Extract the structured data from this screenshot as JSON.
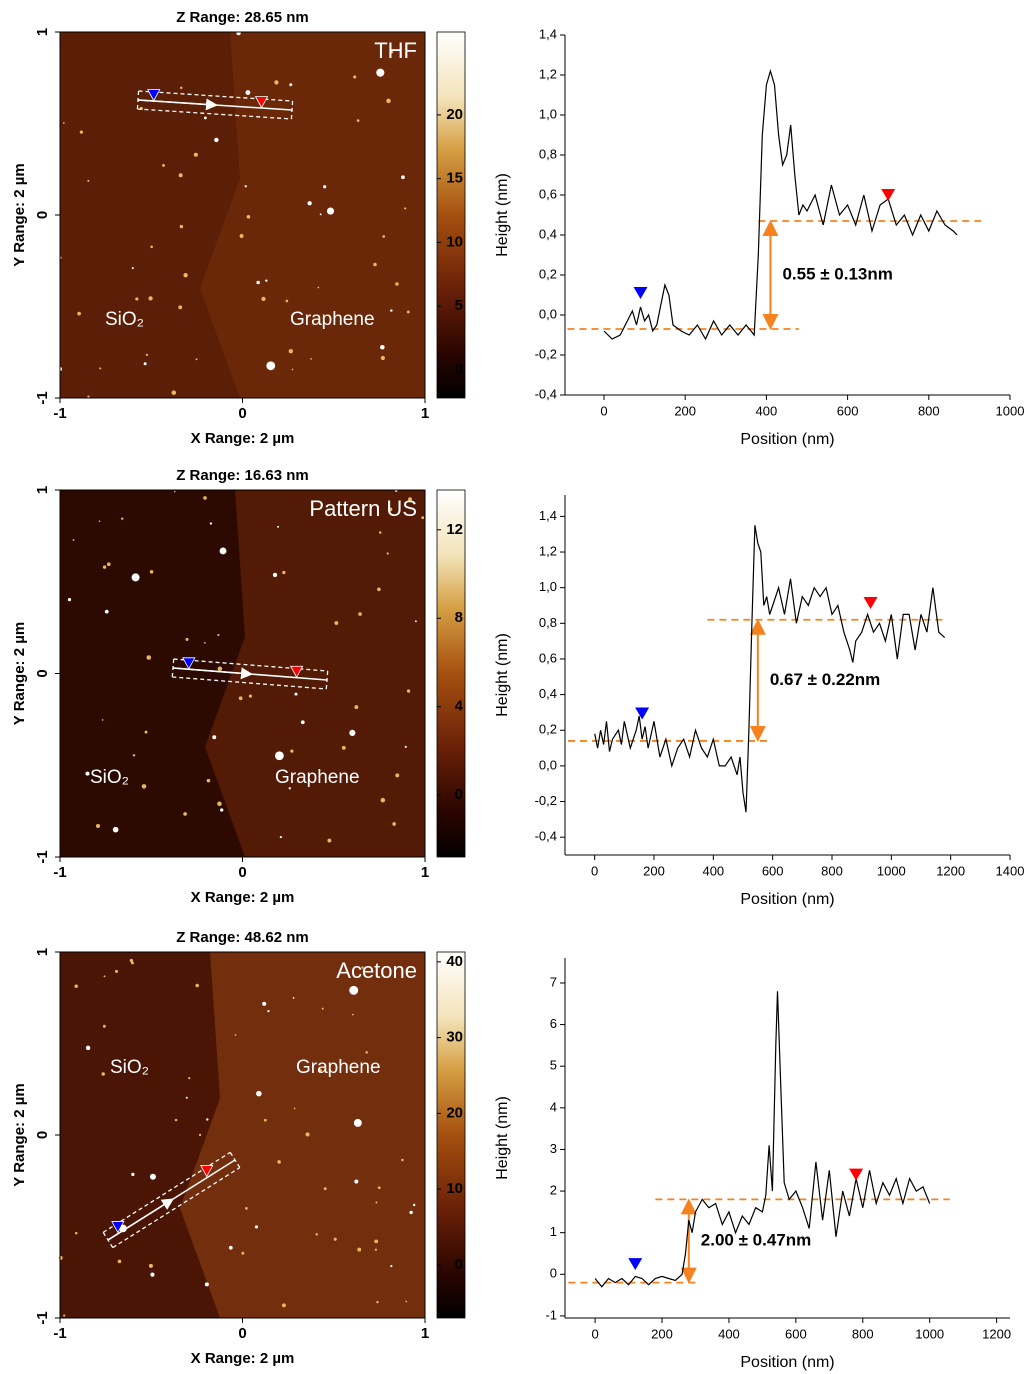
{
  "chart_data": [
    {
      "type": "afm_image",
      "title": "Z Range:  28.65 nm",
      "xlabel": "X Range: 2 µm",
      "ylabel": "Y Range: 2 µm",
      "xlim": [
        -1,
        1
      ],
      "ylim": [
        -1,
        1
      ],
      "xticks": [
        -1,
        0,
        1
      ],
      "yticks": [
        -1,
        0,
        1
      ],
      "colorbar": {
        "lim": [
          -2.2,
          26.5
        ],
        "ticks": [
          0,
          5,
          10,
          15,
          20
        ]
      },
      "label": "THF",
      "regions": [
        "SiO₂",
        "Graphene"
      ]
    },
    {
      "type": "line",
      "xlabel": "Position (nm)",
      "ylabel": "Height (nm)",
      "xlim": [
        -96,
        1000
      ],
      "ylim": [
        -0.4,
        1.4
      ],
      "xticks": [
        0,
        200,
        400,
        600,
        800,
        1000
      ],
      "yticks": [
        {
          "value": -0.4,
          "label": "-0,4"
        },
        {
          "value": -0.2,
          "label": "-0,2"
        },
        {
          "value": 0,
          "label": "0,0"
        },
        {
          "value": 0.2,
          "label": "0,2"
        },
        {
          "value": 0.4,
          "label": "0,4"
        },
        {
          "value": 0.6,
          "label": "0,6"
        },
        {
          "value": 0.8,
          "label": "0,8"
        },
        {
          "value": 1.0,
          "label": "1,0"
        },
        {
          "value": 1.2,
          "label": "1,2"
        },
        {
          "value": 1.4,
          "label": "1,4"
        }
      ],
      "color": "#000000",
      "x": [
        0,
        20,
        40,
        60,
        70,
        80,
        90,
        100,
        110,
        120,
        130,
        140,
        150,
        160,
        170,
        190,
        210,
        230,
        250,
        270,
        290,
        310,
        330,
        350,
        370,
        380,
        390,
        400,
        410,
        420,
        430,
        440,
        450,
        460,
        470,
        480,
        490,
        500,
        520,
        540,
        560,
        580,
        600,
        620,
        640,
        660,
        680,
        700,
        720,
        740,
        760,
        780,
        800,
        820,
        840,
        860,
        870
      ],
      "values": [
        -0.08,
        -0.12,
        -0.1,
        -0.02,
        0.02,
        -0.05,
        0.04,
        -0.03,
        0.0,
        -0.08,
        -0.05,
        0.05,
        0.15,
        0.1,
        -0.05,
        -0.08,
        -0.1,
        -0.05,
        -0.12,
        -0.03,
        -0.1,
        -0.05,
        -0.1,
        -0.05,
        -0.1,
        0.3,
        0.9,
        1.15,
        1.22,
        1.15,
        0.9,
        0.75,
        0.8,
        0.95,
        0.7,
        0.5,
        0.55,
        0.52,
        0.6,
        0.45,
        0.65,
        0.5,
        0.55,
        0.45,
        0.6,
        0.42,
        0.55,
        0.58,
        0.45,
        0.5,
        0.4,
        0.5,
        0.42,
        0.52,
        0.45,
        0.42,
        0.4
      ],
      "markers": [
        {
          "x": 90,
          "y": 0.08,
          "color": "#0000ff"
        },
        {
          "x": 700,
          "y": 0.57,
          "color": "#ff0000"
        }
      ],
      "level_color": "#f5821f",
      "levels": [
        {
          "y": -0.07,
          "x_range": [
            -90,
            480
          ]
        },
        {
          "y": 0.47,
          "x_range": [
            380,
            930
          ]
        }
      ],
      "step": {
        "x": 410,
        "text": "0.55 ± 0.13nm"
      }
    },
    {
      "type": "afm_image",
      "title": "Z Range:  16.63 nm",
      "xlabel": "X Range: 2 µm",
      "ylabel": "Y Range: 2 µm",
      "xlim": [
        -1,
        1
      ],
      "ylim": [
        -1,
        1
      ],
      "xticks": [
        -1,
        0,
        1
      ],
      "yticks": [
        -1,
        0,
        1
      ],
      "colorbar": {
        "lim": [
          -2.8,
          13.8
        ],
        "ticks": [
          0,
          4,
          8,
          12
        ]
      },
      "label": "Pattern US",
      "regions": [
        "SiO₂",
        "Graphene"
      ]
    },
    {
      "type": "line",
      "xlabel": "Position (nm)",
      "ylabel": "Height (nm)",
      "xlim": [
        -100,
        1400
      ],
      "ylim": [
        -0.5,
        1.52
      ],
      "xticks": [
        0,
        200,
        400,
        600,
        800,
        1000,
        1200,
        1400
      ],
      "yticks": [
        {
          "value": -0.4,
          "label": "-0,4"
        },
        {
          "value": -0.2,
          "label": "-0,2"
        },
        {
          "value": 0,
          "label": "0,0"
        },
        {
          "value": 0.2,
          "label": "0,2"
        },
        {
          "value": 0.4,
          "label": "0,4"
        },
        {
          "value": 0.6,
          "label": "0,6"
        },
        {
          "value": 0.8,
          "label": "0,8"
        },
        {
          "value": 1.0,
          "label": "1,0"
        },
        {
          "value": 1.2,
          "label": "1,2"
        },
        {
          "value": 1.4,
          "label": "1,4"
        }
      ],
      "color": "#000000",
      "x": [
        0,
        10,
        20,
        30,
        40,
        50,
        60,
        80,
        90,
        100,
        120,
        140,
        150,
        160,
        170,
        180,
        200,
        220,
        240,
        260,
        280,
        300,
        320,
        340,
        360,
        380,
        400,
        420,
        440,
        460,
        480,
        490,
        500,
        510,
        520,
        530,
        540,
        550,
        560,
        570,
        580,
        590,
        600,
        620,
        640,
        660,
        680,
        700,
        720,
        740,
        760,
        780,
        800,
        820,
        840,
        860,
        870,
        880,
        900,
        920,
        940,
        960,
        980,
        1000,
        1020,
        1040,
        1060,
        1080,
        1100,
        1120,
        1140,
        1160,
        1180
      ],
      "values": [
        0.18,
        0.1,
        0.2,
        0.12,
        0.25,
        0.08,
        0.15,
        0.2,
        0.12,
        0.25,
        0.1,
        0.2,
        0.28,
        0.15,
        0.22,
        0.1,
        0.25,
        0.05,
        0.15,
        0.0,
        0.1,
        0.15,
        0.05,
        0.2,
        0.1,
        0.05,
        0.15,
        0.0,
        0.0,
        0.05,
        -0.05,
        0.05,
        -0.15,
        -0.26,
        0.2,
        0.8,
        1.35,
        1.25,
        1.2,
        0.9,
        0.95,
        0.85,
        0.9,
        1.0,
        0.85,
        1.05,
        0.8,
        0.95,
        0.9,
        1.0,
        0.95,
        1.0,
        0.85,
        0.9,
        0.75,
        0.65,
        0.58,
        0.7,
        0.75,
        0.85,
        0.75,
        0.8,
        0.7,
        0.85,
        0.6,
        0.85,
        0.85,
        0.65,
        0.85,
        0.75,
        1.0,
        0.75,
        0.72
      ],
      "markers": [
        {
          "x": 160,
          "y": 0.26,
          "color": "#0000ff"
        },
        {
          "x": 930,
          "y": 0.88,
          "color": "#ff0000"
        }
      ],
      "level_color": "#f5821f",
      "levels": [
        {
          "y": 0.14,
          "x_range": [
            -90,
            590
          ]
        },
        {
          "y": 0.82,
          "x_range": [
            380,
            1180
          ]
        }
      ],
      "step": {
        "x": 550,
        "text": "0.67 ± 0.22nm"
      }
    },
    {
      "type": "afm_image",
      "title": "Z Range:  48.62 nm",
      "xlabel": "X Range: 2 µm",
      "ylabel": "Y Range: 2 µm",
      "xlim": [
        -1,
        1
      ],
      "ylim": [
        -1,
        1
      ],
      "xticks": [
        -1,
        0,
        1
      ],
      "yticks": [
        -1,
        0,
        1
      ],
      "colorbar": {
        "lim": [
          -7,
          41.3
        ],
        "ticks": [
          0,
          10,
          20,
          30,
          40
        ]
      },
      "label": "Acetone",
      "regions": [
        "SiO₂",
        "Graphene"
      ]
    },
    {
      "type": "line",
      "xlabel": "Position (nm)",
      "ylabel": "Height (nm)",
      "xlim": [
        -90,
        1240
      ],
      "ylim": [
        -1.05,
        7.6
      ],
      "xticks": [
        0,
        200,
        400,
        600,
        800,
        1000,
        1200
      ],
      "yticks": [
        -1,
        0,
        1,
        2,
        3,
        4,
        5,
        6,
        7
      ],
      "color": "#000000",
      "x": [
        0,
        20,
        40,
        60,
        80,
        100,
        120,
        140,
        160,
        180,
        200,
        220,
        240,
        260,
        270,
        280,
        290,
        300,
        320,
        340,
        360,
        380,
        400,
        420,
        440,
        460,
        480,
        500,
        510,
        520,
        530,
        540,
        545,
        555,
        565,
        580,
        600,
        620,
        640,
        660,
        680,
        700,
        720,
        740,
        760,
        780,
        800,
        820,
        840,
        860,
        880,
        900,
        920,
        940,
        960,
        980,
        1000
      ],
      "values": [
        -0.1,
        -0.3,
        -0.1,
        -0.2,
        -0.1,
        -0.25,
        -0.05,
        -0.1,
        -0.25,
        -0.1,
        -0.05,
        -0.1,
        -0.15,
        0.0,
        0.5,
        1.3,
        1.0,
        1.5,
        1.8,
        1.6,
        1.7,
        1.2,
        1.5,
        1.0,
        1.4,
        1.2,
        1.6,
        1.5,
        1.9,
        3.1,
        2.0,
        5.5,
        6.8,
        4.5,
        2.2,
        1.8,
        2.0,
        1.6,
        1.1,
        2.7,
        1.3,
        2.5,
        0.9,
        2.0,
        1.4,
        2.3,
        1.6,
        2.5,
        1.7,
        2.2,
        1.9,
        2.3,
        1.7,
        2.3,
        2.0,
        2.1,
        1.7
      ],
      "markers": [
        {
          "x": 120,
          "y": 0.1,
          "color": "#0000ff"
        },
        {
          "x": 780,
          "y": 2.25,
          "color": "#ff0000"
        }
      ],
      "level_color": "#f5821f",
      "levels": [
        {
          "y": -0.2,
          "x_range": [
            -80,
            300
          ]
        },
        {
          "y": 1.8,
          "x_range": [
            180,
            1060
          ]
        }
      ],
      "step": {
        "x": 280,
        "text": "2.00 ± 0.47nm"
      }
    }
  ]
}
